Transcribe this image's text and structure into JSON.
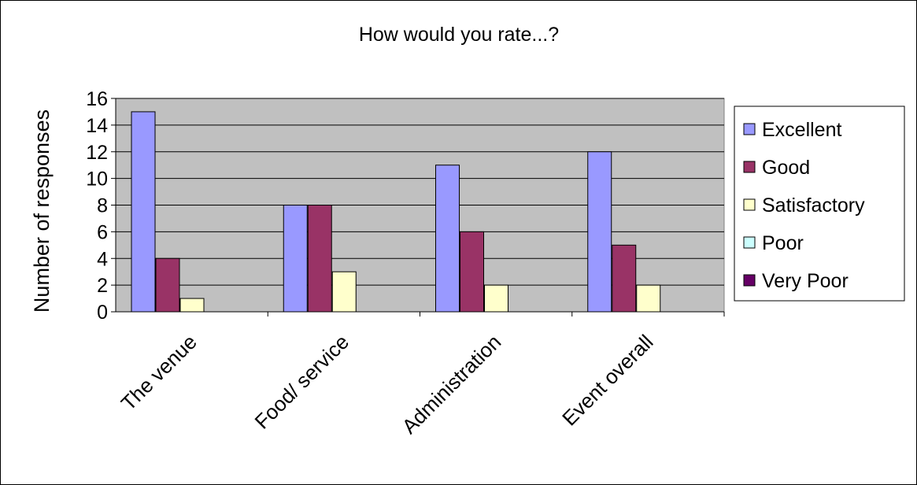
{
  "chart_data": {
    "type": "bar",
    "title": "How would you rate...?",
    "xlabel": "",
    "ylabel": "Number of responses",
    "categories": [
      "The venue",
      "Food/ service",
      "Administration",
      "Event overall"
    ],
    "series": [
      {
        "name": "Excellent",
        "values": [
          15,
          8,
          11,
          12
        ],
        "color": "#9999ff"
      },
      {
        "name": "Good",
        "values": [
          4,
          8,
          6,
          5
        ],
        "color": "#993366"
      },
      {
        "name": "Satisfactory",
        "values": [
          1,
          3,
          2,
          2
        ],
        "color": "#ffffcc"
      },
      {
        "name": "Poor",
        "values": [
          0,
          0,
          0,
          0
        ],
        "color": "#ccffff"
      },
      {
        "name": "Very Poor",
        "values": [
          0,
          0,
          0,
          0
        ],
        "color": "#660066"
      }
    ],
    "ylim": [
      0,
      16
    ],
    "yticks": [
      0,
      2,
      4,
      6,
      8,
      10,
      12,
      14,
      16
    ],
    "grid": true,
    "plot_background": "#c0c0c0",
    "legend": "right"
  }
}
